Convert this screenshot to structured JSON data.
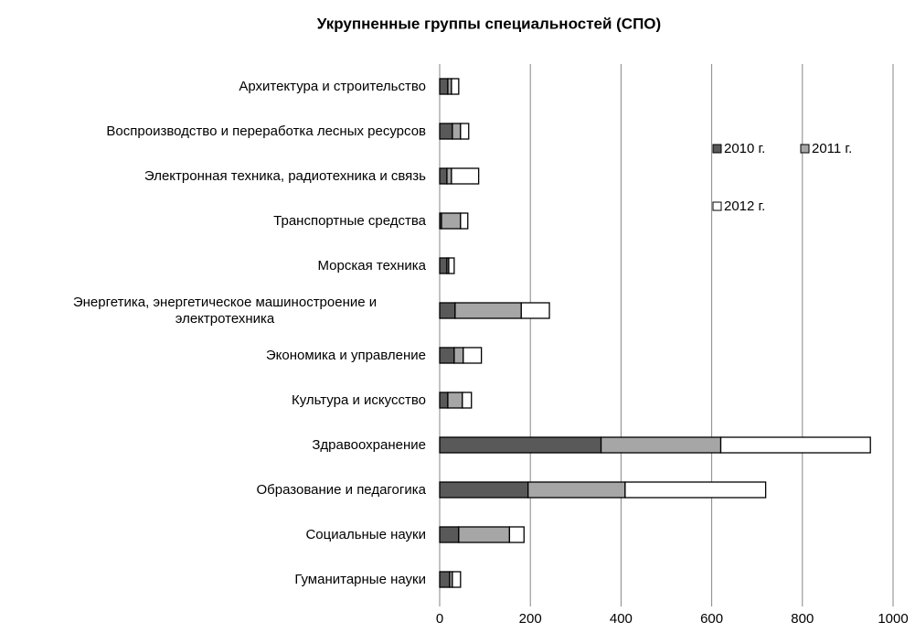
{
  "chart_data": {
    "type": "stacked-barh",
    "title": "Укрупненные группы специальностей  (СПО)",
    "categories": [
      "Архитектура и строительство",
      "Воспроизводство и переработка лесных ресурсов",
      "Электронная техника, радиотехника и связь",
      "Транспортные средства",
      "Морская техника",
      "Энергетика, энергетическое машиностроение и электротехника",
      "Экономика и управление",
      "Культура и искусство",
      "Здравоохранение",
      "Образование и педагогика",
      "Социальные науки",
      "Гуманитарные  науки"
    ],
    "series": [
      {
        "name": "2010 г.",
        "color": "#595959",
        "values": [
          18,
          28,
          16,
          4,
          16,
          34,
          32,
          18,
          356,
          195,
          42,
          22
        ]
      },
      {
        "name": "2011 г.",
        "color": "#a6a6a6",
        "values": [
          8,
          18,
          10,
          42,
          4,
          146,
          20,
          32,
          264,
          214,
          112,
          6
        ]
      },
      {
        "name": "2012 г.",
        "color": "#ffffff",
        "values": [
          16,
          18,
          60,
          16,
          12,
          62,
          40,
          20,
          330,
          310,
          32,
          18
        ]
      }
    ],
    "xlim": [
      0,
      1000
    ],
    "xticks": [
      0,
      200,
      400,
      600,
      800,
      1000
    ],
    "grid": true
  }
}
